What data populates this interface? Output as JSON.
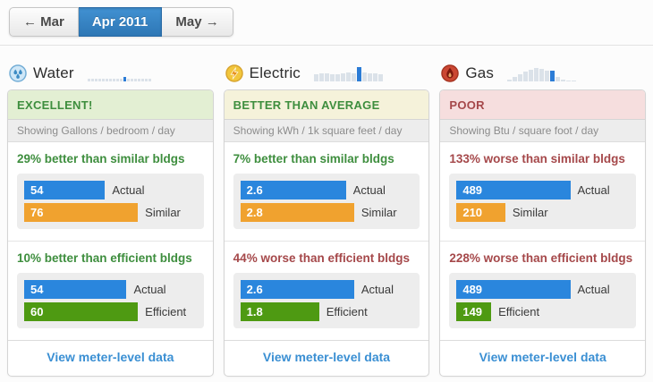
{
  "nav": {
    "prev_label": "← Mar",
    "current_label": "Apr 2011",
    "next_label": "May →"
  },
  "colors": {
    "bar_blue": "#2a86dd",
    "bar_orange": "#f0a22f",
    "bar_green": "#4e9a12",
    "good_green": "#3e8e3e",
    "bad_red": "#a5484a",
    "link_blue": "#3a8fd3",
    "active_nav_blue": "#3082c6",
    "sparkline_light": "#dbe2e9",
    "sparkline_highlight": "#2c7cd6"
  },
  "cards": [
    {
      "id": "water",
      "title": "Water",
      "icon": "water-drops-icon",
      "status": {
        "label": "EXCELLENT!",
        "tone": "excellent"
      },
      "showing": "Showing Gallons / bedroom / day",
      "sparkline": {
        "heights": [
          3,
          3,
          3,
          3,
          3,
          3,
          3,
          3,
          3,
          3,
          5,
          3,
          3,
          3,
          3,
          3,
          3,
          3
        ],
        "highlight_index": 10
      },
      "sections": [
        {
          "headline": "29% better than similar bldgs",
          "tone": "good",
          "bars": [
            {
              "value": 54,
              "label": "Actual",
              "color": "blue"
            },
            {
              "value": 76,
              "label": "Similar",
              "color": "orange"
            }
          ]
        },
        {
          "headline": "10% better than efficient bldgs",
          "tone": "good",
          "bars": [
            {
              "value": 54,
              "label": "Actual",
              "color": "blue"
            },
            {
              "value": 60,
              "label": "Efficient",
              "color": "green"
            }
          ]
        }
      ],
      "footer_link": "View meter-level data"
    },
    {
      "id": "electric",
      "title": "Electric",
      "icon": "lightning-icon",
      "status": {
        "label": "BETTER THAN AVERAGE",
        "tone": "average"
      },
      "showing": "Showing kWh / 1k square feet / day",
      "sparkline": {
        "heights": [
          8,
          9,
          9,
          8,
          8,
          9,
          10,
          9,
          16,
          10,
          9,
          9,
          8
        ],
        "highlight_index": 8
      },
      "sections": [
        {
          "headline": "7% better than similar bldgs",
          "tone": "good",
          "bars": [
            {
              "value": 2.6,
              "label": "Actual",
              "color": "blue"
            },
            {
              "value": 2.8,
              "label": "Similar",
              "color": "orange"
            }
          ]
        },
        {
          "headline": "44% worse than efficient bldgs",
          "tone": "bad",
          "bars": [
            {
              "value": 2.6,
              "label": "Actual",
              "color": "blue"
            },
            {
              "value": 1.8,
              "label": "Efficient",
              "color": "green"
            }
          ]
        }
      ],
      "footer_link": "View meter-level data"
    },
    {
      "id": "gas",
      "title": "Gas",
      "icon": "flame-icon",
      "status": {
        "label": "POOR",
        "tone": "poor"
      },
      "showing": "Showing Btu / square foot / day",
      "sparkline": {
        "heights": [
          2,
          5,
          8,
          11,
          13,
          15,
          14,
          12,
          12,
          5,
          2,
          1,
          1
        ],
        "highlight_index": 8
      },
      "sections": [
        {
          "headline": "133% worse than similar bldgs",
          "tone": "bad",
          "bars": [
            {
              "value": 489,
              "label": "Actual",
              "color": "blue"
            },
            {
              "value": 210,
              "label": "Similar",
              "color": "orange"
            }
          ]
        },
        {
          "headline": "228% worse than efficient bldgs",
          "tone": "bad",
          "bars": [
            {
              "value": 489,
              "label": "Actual",
              "color": "blue"
            },
            {
              "value": 149,
              "label": "Efficient",
              "color": "green"
            }
          ]
        }
      ],
      "footer_link": "View meter-level data"
    }
  ]
}
